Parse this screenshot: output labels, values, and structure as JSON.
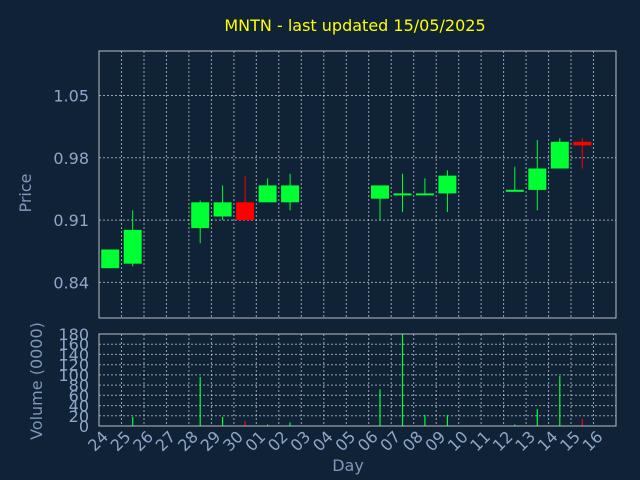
{
  "title": "MNTN - last updated 15/05/2025",
  "colors": {
    "background": "#0f2236",
    "frame": "#b9bec4",
    "grid": "#c6ccd3",
    "title": "#ffff00",
    "axis_text": "#7f97b8",
    "tick_text": "#8fa7c7",
    "up": "#00ff33",
    "down": "#ff0000"
  },
  "chart_data": [
    {
      "type": "candlestick",
      "ylabel": "Price",
      "ylim": [
        0.8,
        1.1
      ],
      "yticks": [
        0.84,
        0.91,
        0.98,
        1.05
      ],
      "ytick_labels": [
        "0.84",
        "0.91",
        "0.98",
        "1.05"
      ],
      "categories": [
        "24",
        "25",
        "26",
        "27",
        "28",
        "29",
        "30",
        "01",
        "02",
        "03",
        "04",
        "05",
        "06",
        "07",
        "08",
        "09",
        "10",
        "11",
        "12",
        "13",
        "14",
        "15",
        "16"
      ],
      "candles": [
        {
          "x": "24",
          "open": 0.856,
          "high": 0.877,
          "low": 0.856,
          "close": 0.877
        },
        {
          "x": "25",
          "open": 0.861,
          "high": 0.921,
          "low": 0.858,
          "close": 0.899
        },
        {
          "x": "28",
          "open": 0.901,
          "high": 0.932,
          "low": 0.884,
          "close": 0.93
        },
        {
          "x": "29",
          "open": 0.914,
          "high": 0.949,
          "low": 0.91,
          "close": 0.93
        },
        {
          "x": "30",
          "open": 0.93,
          "high": 0.96,
          "low": 0.91,
          "close": 0.91
        },
        {
          "x": "01",
          "open": 0.93,
          "high": 0.957,
          "low": 0.93,
          "close": 0.949
        },
        {
          "x": "02",
          "open": 0.93,
          "high": 0.962,
          "low": 0.921,
          "close": 0.949
        },
        {
          "x": "06",
          "open": 0.934,
          "high": 0.949,
          "low": 0.91,
          "close": 0.949
        },
        {
          "x": "07",
          "open": 0.938,
          "high": 0.962,
          "low": 0.919,
          "close": 0.94
        },
        {
          "x": "08",
          "open": 0.938,
          "high": 0.957,
          "low": 0.938,
          "close": 0.94
        },
        {
          "x": "09",
          "open": 0.94,
          "high": 0.966,
          "low": 0.919,
          "close": 0.96
        },
        {
          "x": "12",
          "open": 0.942,
          "high": 0.97,
          "low": 0.942,
          "close": 0.944
        },
        {
          "x": "13",
          "open": 0.944,
          "high": 1.0,
          "low": 0.921,
          "close": 0.968
        },
        {
          "x": "14",
          "open": 0.968,
          "high": 1.002,
          "low": 0.968,
          "close": 0.998
        },
        {
          "x": "15",
          "open": 0.998,
          "high": 1.002,
          "low": 0.968,
          "close": 0.994
        }
      ]
    },
    {
      "type": "bar",
      "xlabel": "Day",
      "ylabel": "Volume (0000)",
      "ylim": [
        0,
        180
      ],
      "yticks": [
        0,
        20,
        40,
        60,
        80,
        100,
        120,
        140,
        160,
        180
      ],
      "ytick_labels": [
        "0",
        "20",
        "40",
        "60",
        "80",
        "100",
        "120",
        "140",
        "160",
        "180"
      ],
      "bars": [
        {
          "x": "25",
          "value": 18,
          "dir": "up"
        },
        {
          "x": "28",
          "value": 96,
          "dir": "up"
        },
        {
          "x": "29",
          "value": 18,
          "dir": "up"
        },
        {
          "x": "30",
          "value": 10,
          "dir": "down"
        },
        {
          "x": "01",
          "value": 3,
          "dir": "up"
        },
        {
          "x": "02",
          "value": 7,
          "dir": "up"
        },
        {
          "x": "06",
          "value": 72,
          "dir": "up"
        },
        {
          "x": "07",
          "value": 180,
          "dir": "up"
        },
        {
          "x": "08",
          "value": 22,
          "dir": "up"
        },
        {
          "x": "09",
          "value": 22,
          "dir": "up"
        },
        {
          "x": "12",
          "value": 3,
          "dir": "up"
        },
        {
          "x": "13",
          "value": 33,
          "dir": "up"
        },
        {
          "x": "14",
          "value": 98,
          "dir": "up"
        },
        {
          "x": "15",
          "value": 14,
          "dir": "down"
        }
      ]
    }
  ]
}
